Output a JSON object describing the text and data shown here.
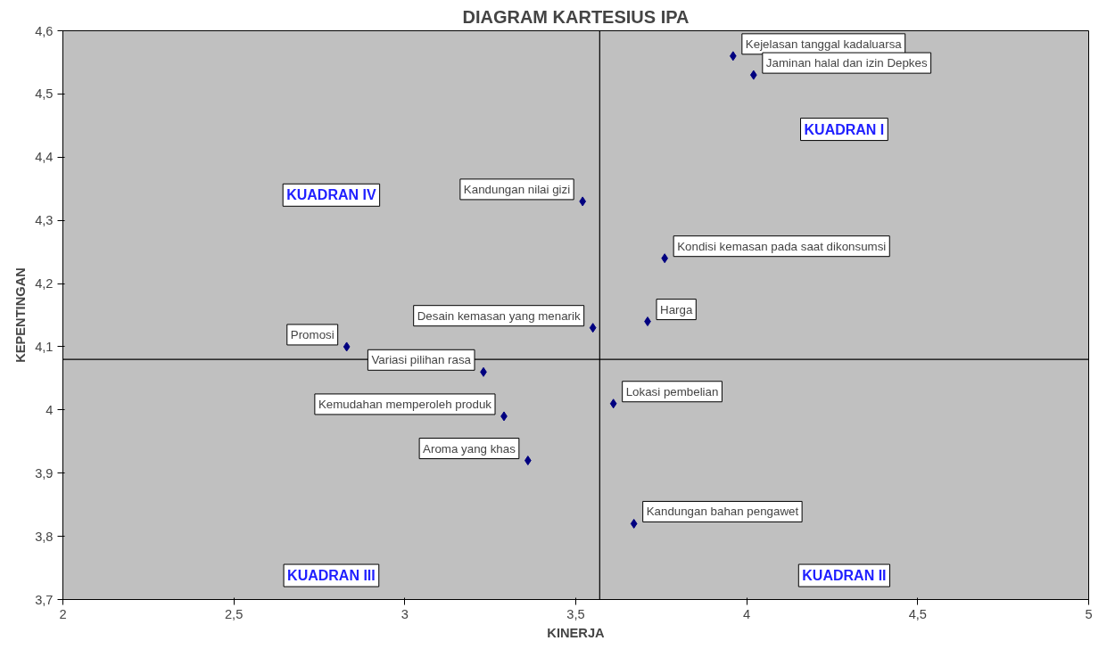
{
  "chart_data": {
    "type": "scatter",
    "title": "DIAGRAM KARTESIUS IPA",
    "xlabel": "KINERJA",
    "ylabel": "KEPENTINGAN",
    "xlim": [
      2,
      5
    ],
    "ylim": [
      3.7,
      4.6
    ],
    "xticks": [
      2,
      {
        "value": 2.5,
        "label": "2,5"
      },
      3,
      {
        "value": 3.5,
        "label": "3,5"
      },
      4,
      {
        "value": 4.5,
        "label": "4,5"
      },
      5
    ],
    "yticks": [
      {
        "value": 3.7,
        "label": "3,7"
      },
      {
        "value": 3.8,
        "label": "3,8"
      },
      {
        "value": 3.9,
        "label": "3,9"
      },
      4,
      {
        "value": 4.1,
        "label": "4,1"
      },
      {
        "value": 4.2,
        "label": "4,2"
      },
      {
        "value": 4.3,
        "label": "4,3"
      },
      {
        "value": 4.4,
        "label": "4,4"
      },
      {
        "value": 4.5,
        "label": "4,5"
      },
      {
        "value": 4.6,
        "label": "4,6"
      }
    ],
    "x": [
      3.96,
      4.02,
      3.52,
      3.76,
      3.71,
      3.55,
      2.83,
      3.23,
      3.61,
      3.29,
      3.36,
      3.67
    ],
    "series": [
      {
        "color": "#000080",
        "values": [
          4.56,
          4.53,
          4.33,
          4.24,
          4.14,
          4.13,
          4.1,
          4.06,
          4.01,
          3.99,
          3.92,
          3.82
        ]
      }
    ],
    "marker": "diamond",
    "grid": false,
    "ref_lines": [
      {
        "axis": "x",
        "value": 3.57,
        "color": "#000000"
      },
      {
        "axis": "y",
        "value": 4.08,
        "color": "#000000"
      }
    ],
    "annotations": [
      {
        "text": "Kejelasan tanggal kadaluarsa",
        "x": 3.96,
        "y": 4.56
      },
      {
        "text": "Jaminan halal dan izin Depkes",
        "x": 4.02,
        "y": 4.53
      },
      {
        "text": "Kandungan nilai gizi",
        "x": 3.52,
        "y": 4.33
      },
      {
        "text": "Kondisi kemasan pada saat dikonsumsi",
        "x": 3.76,
        "y": 4.24
      },
      {
        "text": "Harga",
        "x": 3.71,
        "y": 4.14
      },
      {
        "text": "Desain kemasan yang menarik",
        "x": 3.55,
        "y": 4.13
      },
      {
        "text": "Promosi",
        "x": 2.83,
        "y": 4.1
      },
      {
        "text": "Variasi pilihan rasa",
        "x": 3.23,
        "y": 4.06
      },
      {
        "text": "Lokasi pembelian",
        "x": 3.61,
        "y": 4.01
      },
      {
        "text": "Kemudahan memperoleh produk",
        "x": 3.29,
        "y": 3.99
      },
      {
        "text": "Aroma yang khas",
        "x": 3.36,
        "y": 3.92
      },
      {
        "text": "Kandungan bahan pengawet",
        "x": 3.67,
        "y": 3.82
      },
      "KUADRAN I",
      "KUADRAN II",
      "KUADRAN III",
      "KUADRAN IV"
    ]
  }
}
